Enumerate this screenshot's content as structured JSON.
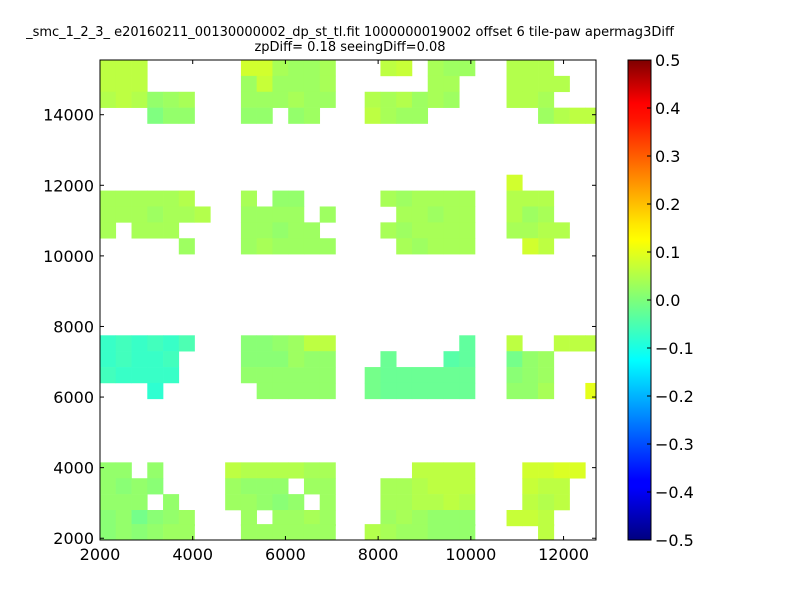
{
  "chart_data": {
    "type": "heatmap",
    "title": "_smc_1_2_3_ e20160211_00130000002_dp_st_tl.fit 1000000019002 offset 6 tile-paw apermag3Diff",
    "subtitle": "zpDiff= 0.18 seeingDiff=0.08",
    "xlim": [
      2000,
      12700
    ],
    "ylim": [
      1950,
      15550
    ],
    "cell_size": [
      340,
      450
    ],
    "x_ticks": [
      2000,
      4000,
      6000,
      8000,
      10000,
      12000
    ],
    "y_ticks": [
      2000,
      4000,
      6000,
      8000,
      10000,
      12000,
      14000
    ],
    "x_tick_labels": [
      "2000",
      "4000",
      "6000",
      "8000",
      "10000",
      "12000"
    ],
    "y_tick_labels": [
      "2000",
      "4000",
      "6000",
      "8000",
      "10000",
      "12000",
      "14000"
    ],
    "colorbar": {
      "colormap": "jet",
      "range": [
        -0.5,
        0.5
      ],
      "ticks": [
        0.5,
        0.4,
        0.3,
        0.2,
        0.1,
        0.0,
        -0.1,
        -0.2,
        -0.3,
        -0.4,
        -0.5
      ],
      "tick_labels": [
        "0.5",
        "0.4",
        "0.3",
        "0.2",
        "0.1",
        "0.0",
        "−0.1",
        "−0.2",
        "−0.3",
        "−0.4",
        "−0.5"
      ]
    },
    "grid": false,
    "note_values": "cells: [x_start, y_start, value] in data units",
    "cells": [
      [
        2000,
        15100,
        0.06
      ],
      [
        2340,
        15100,
        0.06
      ],
      [
        2680,
        15100,
        0.06
      ],
      [
        2000,
        14650,
        0.06
      ],
      [
        2340,
        14650,
        0.06
      ],
      [
        2680,
        14650,
        0.06
      ],
      [
        2000,
        14200,
        0.05
      ],
      [
        2340,
        14200,
        0.06
      ],
      [
        2680,
        14200,
        0.05
      ],
      [
        3020,
        14200,
        0.02
      ],
      [
        3360,
        14200,
        0.03
      ],
      [
        3700,
        14200,
        0.04
      ],
      [
        3020,
        13750,
        0.0
      ],
      [
        3360,
        13750,
        0.02
      ],
      [
        3700,
        13750,
        0.02
      ],
      [
        5040,
        15100,
        0.08
      ],
      [
        5380,
        15100,
        0.08
      ],
      [
        5720,
        15100,
        0.04
      ],
      [
        6060,
        15100,
        0.03
      ],
      [
        6400,
        15100,
        0.03
      ],
      [
        6740,
        15100,
        0.04
      ],
      [
        5040,
        14650,
        0.03
      ],
      [
        5380,
        14650,
        0.07
      ],
      [
        5720,
        14650,
        0.03
      ],
      [
        6060,
        14650,
        0.03
      ],
      [
        6400,
        14650,
        0.03
      ],
      [
        6740,
        14650,
        0.04
      ],
      [
        5040,
        14200,
        0.03
      ],
      [
        5380,
        14200,
        0.03
      ],
      [
        5720,
        14200,
        0.03
      ],
      [
        6060,
        14200,
        0.04
      ],
      [
        6400,
        14200,
        0.03
      ],
      [
        6740,
        14200,
        0.03
      ],
      [
        5040,
        13750,
        0.02
      ],
      [
        5380,
        13750,
        0.02
      ],
      [
        6060,
        13750,
        0.02
      ],
      [
        6400,
        13750,
        0.03
      ],
      [
        8050,
        15100,
        0.06
      ],
      [
        8390,
        15100,
        0.07
      ],
      [
        9070,
        15100,
        0.04
      ],
      [
        9410,
        15100,
        0.03
      ],
      [
        9750,
        15100,
        0.03
      ],
      [
        9070,
        14650,
        0.04
      ],
      [
        9410,
        14650,
        0.04
      ],
      [
        7710,
        14200,
        0.05
      ],
      [
        8050,
        14200,
        0.04
      ],
      [
        8390,
        14200,
        0.05
      ],
      [
        8730,
        14200,
        0.03
      ],
      [
        9070,
        14200,
        0.04
      ],
      [
        9410,
        14200,
        0.03
      ],
      [
        7710,
        13750,
        0.06
      ],
      [
        8050,
        13750,
        0.04
      ],
      [
        8390,
        13750,
        0.03
      ],
      [
        8730,
        13750,
        0.03
      ],
      [
        10770,
        15100,
        0.05
      ],
      [
        11110,
        15100,
        0.05
      ],
      [
        11450,
        15100,
        0.05
      ],
      [
        10770,
        14650,
        0.05
      ],
      [
        11110,
        14650,
        0.05
      ],
      [
        11450,
        14650,
        0.05
      ],
      [
        11790,
        14650,
        0.05
      ],
      [
        10770,
        14200,
        0.05
      ],
      [
        11110,
        14200,
        0.05
      ],
      [
        11450,
        14200,
        0.04
      ],
      [
        11450,
        13750,
        0.03
      ],
      [
        11790,
        13750,
        0.05
      ],
      [
        12130,
        13750,
        0.06
      ],
      [
        12470,
        13750,
        0.06
      ],
      [
        2000,
        11400,
        0.04
      ],
      [
        2340,
        11400,
        0.04
      ],
      [
        2680,
        11400,
        0.04
      ],
      [
        3020,
        11400,
        0.04
      ],
      [
        3360,
        11400,
        0.04
      ],
      [
        3700,
        11400,
        0.05
      ],
      [
        2000,
        10950,
        0.04
      ],
      [
        2340,
        10950,
        0.04
      ],
      [
        2680,
        10950,
        0.04
      ],
      [
        3020,
        10950,
        0.03
      ],
      [
        3360,
        10950,
        0.04
      ],
      [
        3700,
        10950,
        0.04
      ],
      [
        4040,
        10950,
        0.05
      ],
      [
        2000,
        10500,
        0.04
      ],
      [
        2680,
        10500,
        0.04
      ],
      [
        3020,
        10500,
        0.04
      ],
      [
        3360,
        10500,
        0.04
      ],
      [
        3700,
        10050,
        0.03
      ],
      [
        5040,
        11400,
        0.04
      ],
      [
        5380,
        10950,
        0.03
      ],
      [
        5040,
        10950,
        0.03
      ],
      [
        5720,
        10950,
        0.03
      ],
      [
        6060,
        10950,
        0.03
      ],
      [
        6060,
        11400,
        0.02
      ],
      [
        5720,
        11400,
        0.02
      ],
      [
        6740,
        10950,
        0.03
      ],
      [
        5040,
        10500,
        0.03
      ],
      [
        5380,
        10500,
        0.03
      ],
      [
        5720,
        10500,
        0.02
      ],
      [
        6060,
        10500,
        0.03
      ],
      [
        6400,
        10500,
        0.03
      ],
      [
        5040,
        10050,
        0.03
      ],
      [
        5380,
        10050,
        0.04
      ],
      [
        5720,
        10050,
        0.03
      ],
      [
        6060,
        10050,
        0.03
      ],
      [
        6400,
        10050,
        0.03
      ],
      [
        6740,
        10050,
        0.03
      ],
      [
        8050,
        11400,
        0.04
      ],
      [
        8390,
        11400,
        0.03
      ],
      [
        8730,
        11400,
        0.04
      ],
      [
        9070,
        11400,
        0.04
      ],
      [
        9410,
        11400,
        0.04
      ],
      [
        9750,
        11400,
        0.04
      ],
      [
        8390,
        10950,
        0.04
      ],
      [
        8730,
        10950,
        0.04
      ],
      [
        9070,
        10950,
        0.03
      ],
      [
        9410,
        10950,
        0.04
      ],
      [
        9750,
        10950,
        0.04
      ],
      [
        8050,
        10500,
        0.04
      ],
      [
        8390,
        10500,
        0.03
      ],
      [
        8730,
        10500,
        0.04
      ],
      [
        9070,
        10500,
        0.04
      ],
      [
        9410,
        10500,
        0.04
      ],
      [
        9750,
        10500,
        0.04
      ],
      [
        8390,
        10050,
        0.04
      ],
      [
        8730,
        10050,
        0.03
      ],
      [
        9070,
        10050,
        0.04
      ],
      [
        9410,
        10050,
        0.04
      ],
      [
        9750,
        10050,
        0.04
      ],
      [
        10770,
        11850,
        0.08
      ],
      [
        10770,
        11400,
        0.05
      ],
      [
        11110,
        11400,
        0.05
      ],
      [
        11450,
        11400,
        0.05
      ],
      [
        10770,
        10950,
        0.05
      ],
      [
        11110,
        10950,
        0.03
      ],
      [
        11450,
        10950,
        0.04
      ],
      [
        10770,
        10500,
        0.04
      ],
      [
        11110,
        10500,
        0.04
      ],
      [
        11450,
        10500,
        0.05
      ],
      [
        11790,
        10500,
        0.05
      ],
      [
        11450,
        10050,
        0.06
      ],
      [
        11110,
        10050,
        0.08
      ],
      [
        2000,
        7300,
        -0.07
      ],
      [
        2340,
        7300,
        -0.06
      ],
      [
        2680,
        7300,
        -0.07
      ],
      [
        3020,
        7300,
        -0.06
      ],
      [
        3360,
        7300,
        -0.07
      ],
      [
        3700,
        7300,
        -0.05
      ],
      [
        2000,
        6850,
        -0.07
      ],
      [
        2340,
        6850,
        -0.06
      ],
      [
        2680,
        6850,
        -0.07
      ],
      [
        3020,
        6850,
        -0.07
      ],
      [
        3360,
        6850,
        -0.06
      ],
      [
        2000,
        6400,
        -0.06
      ],
      [
        2340,
        6400,
        -0.07
      ],
      [
        2680,
        6400,
        -0.07
      ],
      [
        3020,
        6400,
        -0.07
      ],
      [
        3360,
        6400,
        -0.07
      ],
      [
        3020,
        5950,
        -0.08
      ],
      [
        5040,
        7300,
        0.01
      ],
      [
        5380,
        7300,
        0.01
      ],
      [
        5720,
        7300,
        0.02
      ],
      [
        6060,
        7300,
        0.03
      ],
      [
        6400,
        7300,
        0.06
      ],
      [
        6740,
        7300,
        0.06
      ],
      [
        5040,
        6850,
        0.01
      ],
      [
        5380,
        6850,
        0.01
      ],
      [
        5720,
        6850,
        0.01
      ],
      [
        6400,
        6850,
        0.02
      ],
      [
        6740,
        6850,
        0.02
      ],
      [
        5040,
        6400,
        0.02
      ],
      [
        5380,
        6400,
        0.02
      ],
      [
        5720,
        6400,
        0.02
      ],
      [
        6060,
        6400,
        0.02
      ],
      [
        6400,
        6400,
        0.02
      ],
      [
        6740,
        6400,
        0.02
      ],
      [
        5380,
        5950,
        0.02
      ],
      [
        5720,
        5950,
        0.02
      ],
      [
        6060,
        5950,
        0.02
      ],
      [
        6400,
        5950,
        0.02
      ],
      [
        6740,
        5950,
        0.02
      ],
      [
        6060,
        6850,
        0.03
      ],
      [
        9750,
        7300,
        -0.03
      ],
      [
        8050,
        6850,
        -0.02
      ],
      [
        9410,
        6850,
        -0.04
      ],
      [
        9750,
        6850,
        -0.03
      ],
      [
        7710,
        6400,
        -0.01
      ],
      [
        8050,
        6400,
        -0.02
      ],
      [
        8390,
        6400,
        -0.02
      ],
      [
        8730,
        6400,
        -0.02
      ],
      [
        9070,
        6400,
        -0.02
      ],
      [
        9410,
        6400,
        -0.02
      ],
      [
        9750,
        6400,
        -0.02
      ],
      [
        7710,
        5950,
        -0.01
      ],
      [
        8050,
        5950,
        -0.02
      ],
      [
        8390,
        5950,
        -0.02
      ],
      [
        8730,
        5950,
        -0.02
      ],
      [
        9070,
        5950,
        -0.02
      ],
      [
        9410,
        5950,
        -0.02
      ],
      [
        9750,
        5950,
        -0.02
      ],
      [
        10770,
        7300,
        0.06
      ],
      [
        11790,
        7300,
        0.06
      ],
      [
        12130,
        7300,
        0.06
      ],
      [
        12470,
        7300,
        0.06
      ],
      [
        10770,
        6850,
        -0.01
      ],
      [
        10770,
        6400,
        0.01
      ],
      [
        11110,
        6400,
        0.02
      ],
      [
        11450,
        6400,
        0.03
      ],
      [
        11110,
        6850,
        0.02
      ],
      [
        11450,
        6850,
        0.03
      ],
      [
        10770,
        5950,
        0.02
      ],
      [
        11110,
        5950,
        0.02
      ],
      [
        11450,
        5950,
        0.04
      ],
      [
        12470,
        5950,
        0.1
      ],
      [
        2000,
        3700,
        0.02
      ],
      [
        2340,
        3700,
        0.02
      ],
      [
        3020,
        3700,
        0.02
      ],
      [
        2000,
        3250,
        0.02
      ],
      [
        2340,
        3250,
        0.01
      ],
      [
        2680,
        3250,
        0.02
      ],
      [
        3020,
        3250,
        0.01
      ],
      [
        2000,
        2800,
        0.02
      ],
      [
        2340,
        2800,
        0.02
      ],
      [
        2680,
        2800,
        0.02
      ],
      [
        3360,
        2800,
        0.02
      ],
      [
        2000,
        2350,
        0.01
      ],
      [
        2340,
        2350,
        0.02
      ],
      [
        2680,
        2350,
        -0.01
      ],
      [
        3020,
        2350,
        0.01
      ],
      [
        3360,
        2350,
        0.02
      ],
      [
        3700,
        2350,
        0.03
      ],
      [
        2000,
        1950,
        0.01
      ],
      [
        2340,
        1950,
        0.02
      ],
      [
        2680,
        1950,
        0.01
      ],
      [
        3020,
        1950,
        0.02
      ],
      [
        3360,
        1950,
        0.03
      ],
      [
        3700,
        1950,
        0.03
      ],
      [
        4700,
        3700,
        0.06
      ],
      [
        5040,
        3700,
        0.05
      ],
      [
        5380,
        3700,
        0.05
      ],
      [
        5720,
        3700,
        0.05
      ],
      [
        6060,
        3700,
        0.05
      ],
      [
        6400,
        3700,
        0.04
      ],
      [
        6740,
        3700,
        0.04
      ],
      [
        4700,
        3250,
        0.03
      ],
      [
        5040,
        3250,
        0.02
      ],
      [
        5380,
        3250,
        0.02
      ],
      [
        5720,
        3250,
        0.02
      ],
      [
        6400,
        3250,
        0.03
      ],
      [
        6740,
        3250,
        0.03
      ],
      [
        4700,
        2800,
        0.03
      ],
      [
        5040,
        2800,
        0.03
      ],
      [
        5380,
        2800,
        0.02
      ],
      [
        5720,
        2800,
        0.01
      ],
      [
        6060,
        2800,
        0.02
      ],
      [
        6740,
        2800,
        0.03
      ],
      [
        5040,
        2350,
        0.03
      ],
      [
        5720,
        2350,
        0.03
      ],
      [
        6060,
        2350,
        0.03
      ],
      [
        6400,
        2350,
        0.04
      ],
      [
        6740,
        2350,
        0.03
      ],
      [
        5040,
        1950,
        0.03
      ],
      [
        5380,
        1950,
        0.03
      ],
      [
        5720,
        1950,
        0.03
      ],
      [
        6060,
        1950,
        0.03
      ],
      [
        6400,
        1950,
        0.03
      ],
      [
        6740,
        1950,
        0.03
      ],
      [
        8730,
        3700,
        0.06
      ],
      [
        9070,
        3700,
        0.06
      ],
      [
        9410,
        3700,
        0.06
      ],
      [
        9750,
        3700,
        0.06
      ],
      [
        8050,
        3250,
        0.04
      ],
      [
        8390,
        3250,
        0.04
      ],
      [
        8730,
        3250,
        0.05
      ],
      [
        9070,
        3250,
        0.06
      ],
      [
        9410,
        3250,
        0.06
      ],
      [
        9750,
        3250,
        0.06
      ],
      [
        8050,
        2800,
        0.04
      ],
      [
        8390,
        2800,
        0.04
      ],
      [
        8730,
        2800,
        0.05
      ],
      [
        9070,
        2800,
        0.05
      ],
      [
        9410,
        2800,
        0.06
      ],
      [
        9750,
        2800,
        0.05
      ],
      [
        8050,
        2350,
        0.03
      ],
      [
        8390,
        2350,
        0.04
      ],
      [
        8730,
        2350,
        0.03
      ],
      [
        9070,
        2350,
        0.02
      ],
      [
        9410,
        2350,
        0.02
      ],
      [
        9750,
        2350,
        0.02
      ],
      [
        7710,
        1950,
        0.05
      ],
      [
        8050,
        1950,
        0.04
      ],
      [
        8390,
        1950,
        0.03
      ],
      [
        8730,
        1950,
        0.03
      ],
      [
        9070,
        1950,
        0.02
      ],
      [
        9410,
        1950,
        0.02
      ],
      [
        9750,
        1950,
        0.02
      ],
      [
        11110,
        3700,
        0.08
      ],
      [
        11450,
        3700,
        0.08
      ],
      [
        11790,
        3700,
        0.09
      ],
      [
        12130,
        3700,
        0.09
      ],
      [
        11110,
        3250,
        0.07
      ],
      [
        11450,
        3250,
        0.06
      ],
      [
        11790,
        3250,
        0.06
      ],
      [
        11110,
        2800,
        0.06
      ],
      [
        11790,
        2800,
        0.06
      ],
      [
        11450,
        2800,
        0.05
      ],
      [
        10770,
        2350,
        0.07
      ],
      [
        11110,
        2350,
        0.07
      ],
      [
        11450,
        2350,
        0.06
      ],
      [
        11450,
        1950,
        0.06
      ]
    ]
  }
}
